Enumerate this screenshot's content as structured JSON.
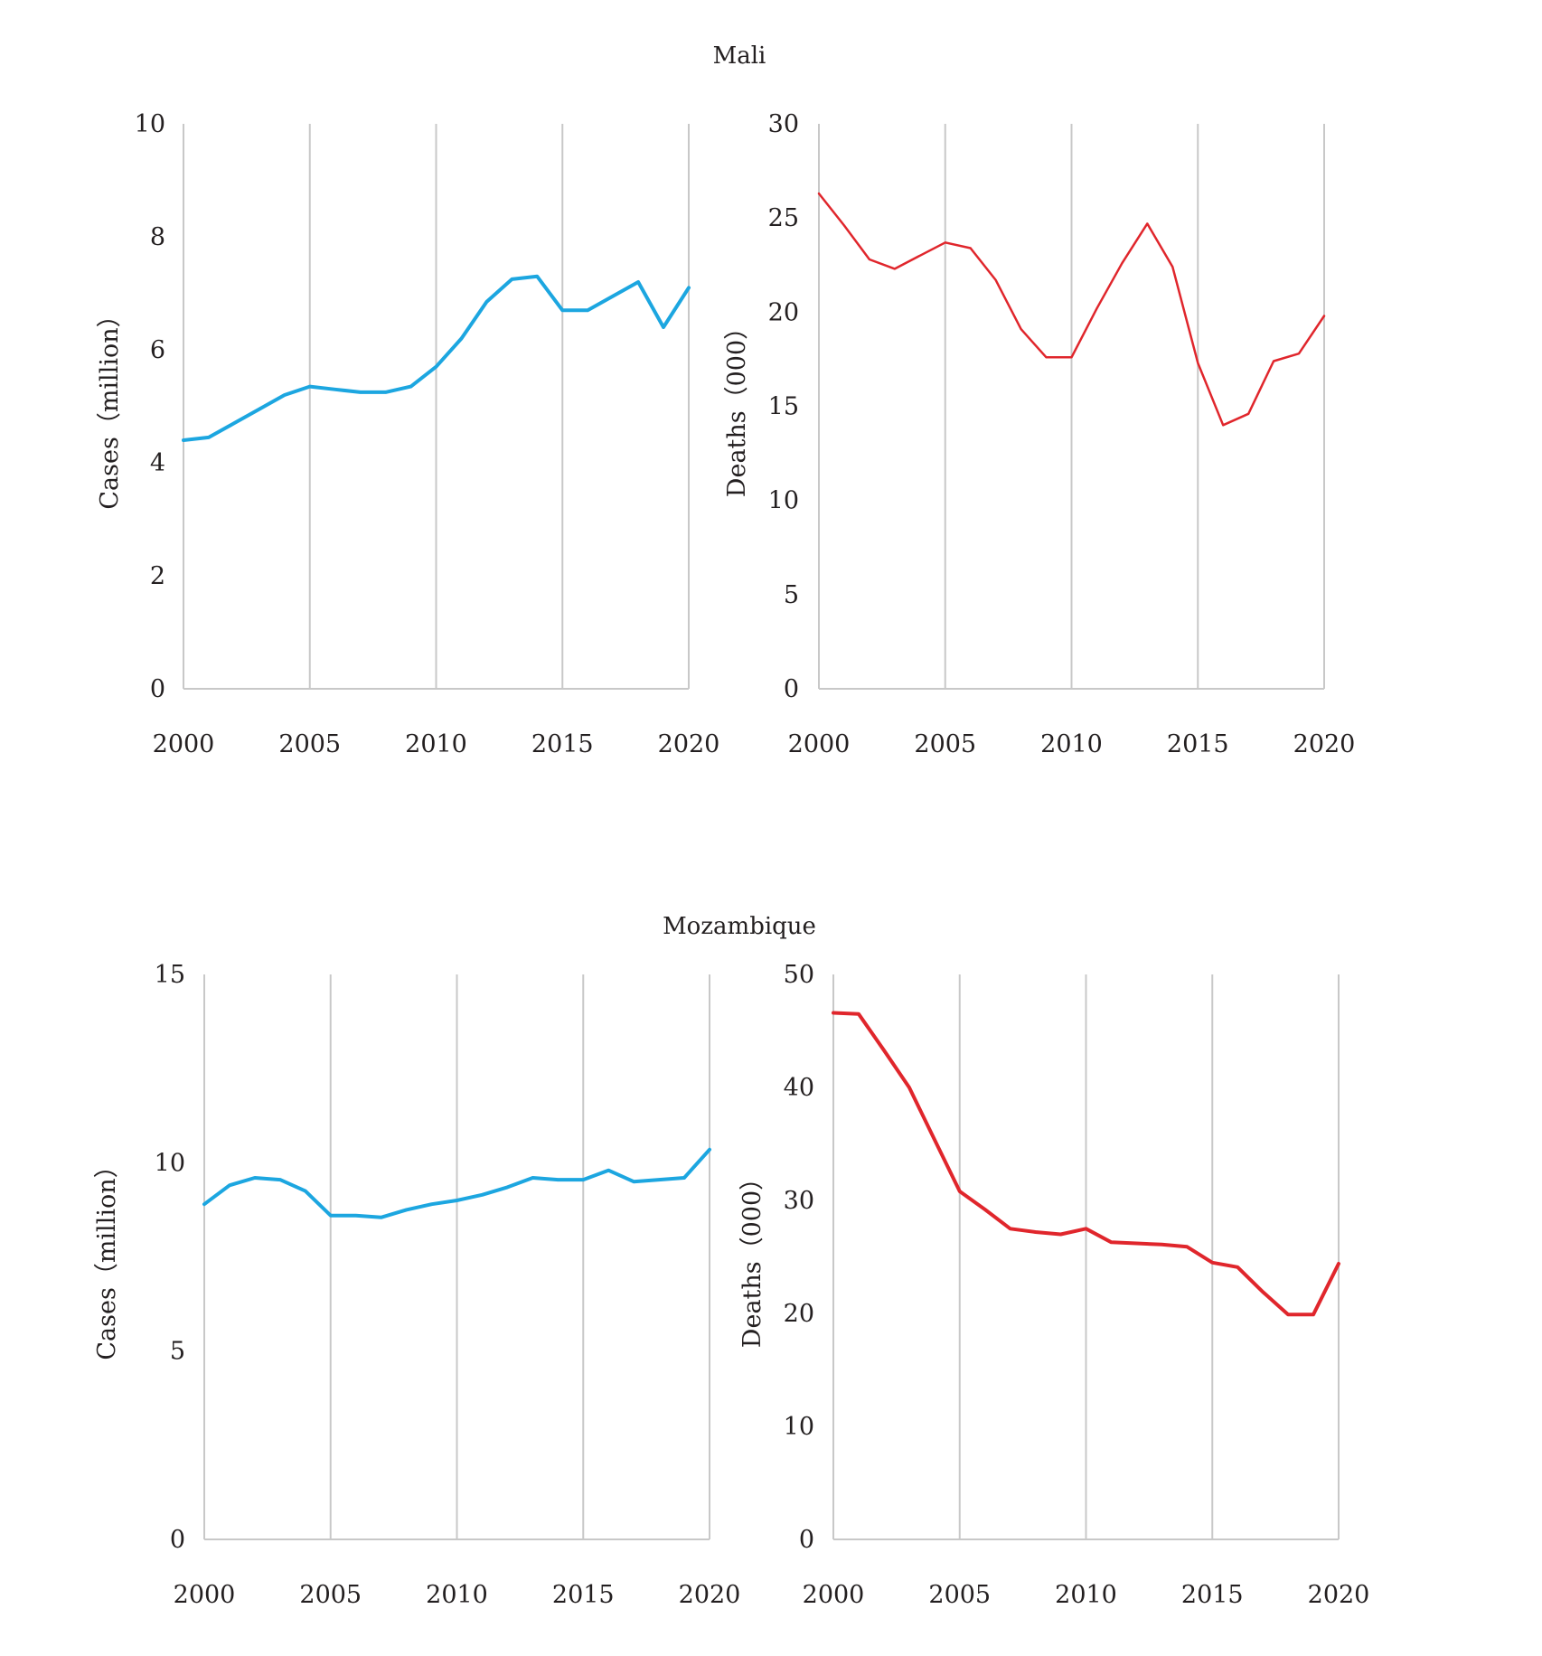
{
  "groups": {
    "mali": "Mali",
    "mozambique": "Mozambique"
  },
  "chart_data": [
    {
      "type": "line",
      "group": "Mali",
      "xlabel": "",
      "ylabel": "Cases（million）",
      "xlim": [
        2000,
        2020
      ],
      "ylim": [
        0,
        10
      ],
      "xticks": [
        2000,
        2005,
        2010,
        2015,
        2020
      ],
      "yticks": [
        0,
        2,
        4,
        6,
        8,
        10
      ],
      "grid": "vertical",
      "color": "#1ca6e0",
      "series": [
        {
          "x": [
            2000,
            2001,
            2002,
            2003,
            2004,
            2005,
            2006,
            2007,
            2008,
            2009,
            2010,
            2011,
            2012,
            2013,
            2014,
            2015,
            2016,
            2017,
            2018,
            2019,
            2020
          ],
          "values": [
            4.4,
            4.45,
            4.7,
            4.95,
            5.2,
            5.35,
            5.3,
            5.25,
            5.25,
            5.35,
            5.7,
            6.2,
            6.85,
            7.25,
            7.3,
            6.7,
            6.7,
            6.95,
            7.2,
            6.4,
            7.1
          ]
        }
      ]
    },
    {
      "type": "line",
      "group": "Mali",
      "xlabel": "",
      "ylabel": "Deaths（000）",
      "xlim": [
        2000,
        2020
      ],
      "ylim": [
        0,
        30
      ],
      "xticks": [
        2000,
        2005,
        2010,
        2015,
        2020
      ],
      "yticks": [
        0,
        5,
        10,
        15,
        20,
        25,
        30
      ],
      "grid": "vertical",
      "color": "#e0262c",
      "series": [
        {
          "x": [
            2000,
            2001,
            2002,
            2003,
            2004,
            2005,
            2006,
            2007,
            2008,
            2009,
            2010,
            2011,
            2012,
            2013,
            2014,
            2015,
            2016,
            2017,
            2018,
            2019,
            2020
          ],
          "values": [
            26.3,
            24.6,
            22.8,
            22.3,
            23.0,
            23.7,
            23.4,
            21.7,
            19.1,
            17.6,
            17.6,
            20.2,
            22.6,
            24.7,
            22.4,
            17.3,
            14.0,
            14.6,
            17.4,
            17.8,
            19.8
          ]
        }
      ]
    },
    {
      "type": "line",
      "group": "Mozambique",
      "xlabel": "",
      "ylabel": "Cases（million）",
      "xlim": [
        2000,
        2020
      ],
      "ylim": [
        0,
        15
      ],
      "xticks": [
        2000,
        2005,
        2010,
        2015,
        2020
      ],
      "yticks": [
        0,
        5,
        10,
        15
      ],
      "grid": "vertical",
      "color": "#1ca6e0",
      "series": [
        {
          "x": [
            2000,
            2001,
            2002,
            2003,
            2004,
            2005,
            2006,
            2007,
            2008,
            2009,
            2010,
            2011,
            2012,
            2013,
            2014,
            2015,
            2016,
            2017,
            2018,
            2019,
            2020
          ],
          "values": [
            8.9,
            9.4,
            9.6,
            9.55,
            9.25,
            8.6,
            8.6,
            8.55,
            8.75,
            8.9,
            9.0,
            9.15,
            9.35,
            9.6,
            9.55,
            9.55,
            9.8,
            9.5,
            9.55,
            9.6,
            10.35
          ]
        }
      ]
    },
    {
      "type": "line",
      "group": "Mozambique",
      "xlabel": "",
      "ylabel": "Deaths（000）",
      "xlim": [
        2000,
        2020
      ],
      "ylim": [
        0,
        50
      ],
      "xticks": [
        2000,
        2005,
        2010,
        2015,
        2020
      ],
      "yticks": [
        0,
        10,
        20,
        30,
        40,
        50
      ],
      "grid": "vertical",
      "color": "#e0262c",
      "series": [
        {
          "x": [
            2000,
            2001,
            2002,
            2003,
            2004,
            2005,
            2006,
            2007,
            2008,
            2009,
            2010,
            2011,
            2012,
            2013,
            2014,
            2015,
            2016,
            2017,
            2018,
            2019,
            2020
          ],
          "values": [
            46.6,
            46.5,
            43.3,
            40.0,
            35.4,
            30.8,
            29.2,
            27.5,
            27.2,
            27.0,
            27.5,
            26.3,
            26.2,
            26.1,
            25.9,
            24.5,
            24.1,
            21.9,
            19.9,
            19.9,
            24.4
          ]
        }
      ]
    }
  ]
}
